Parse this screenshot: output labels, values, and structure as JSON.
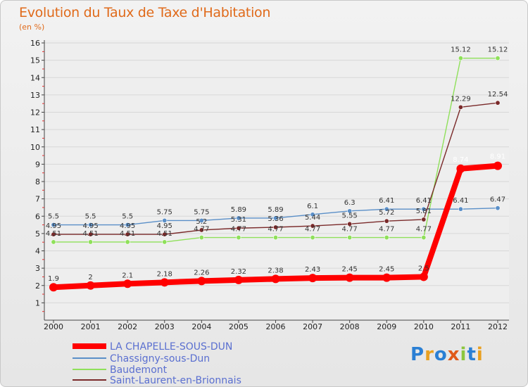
{
  "title": "Evolution du Taux de Taxe d'Habitation",
  "unit_label": "(en %)",
  "chart_data": {
    "type": "line",
    "x": [
      2000,
      2001,
      2002,
      2003,
      2004,
      2005,
      2006,
      2007,
      2008,
      2009,
      2010,
      2011,
      2012
    ],
    "x_labels": [
      "2000",
      "2001",
      "2002",
      "2003",
      "2004",
      "2005",
      "2006",
      "2007",
      "2008",
      "2009",
      "2010",
      "2011",
      "2012"
    ],
    "ylim": [
      0,
      16
    ],
    "y_ticks": [
      1,
      2,
      3,
      4,
      5,
      6,
      7,
      8,
      9,
      10,
      11,
      12,
      13,
      14,
      15,
      16
    ],
    "series": [
      {
        "name": "LA CHAPELLE-SOUS-DUN",
        "color": "#ff0000",
        "width": "bold",
        "values": [
          1.9,
          2,
          2.1,
          2.18,
          2.26,
          2.32,
          2.38,
          2.43,
          2.45,
          2.45,
          2.5,
          8.74,
          8.91
        ],
        "labels": [
          "1.9",
          "2",
          "2.1",
          "2.18",
          "2.26",
          "2.32",
          "2.38",
          "2.43",
          "2.45",
          "2.45",
          "2.5",
          "8.74",
          "8.91"
        ]
      },
      {
        "name": "Chassigny-sous-Dun",
        "color": "#5a8fc8",
        "width": "thin",
        "values": [
          5.5,
          5.5,
          5.5,
          5.75,
          5.75,
          5.89,
          5.89,
          6.1,
          6.3,
          6.41,
          6.41,
          6.41,
          6.47
        ],
        "labels": [
          "5.5",
          "5.5",
          "5.5",
          "5.75",
          "5.75",
          "5.89",
          "5.89",
          "6.1",
          "6.3",
          "6.41",
          "6.41",
          "6.41",
          "6.47"
        ]
      },
      {
        "name": "Baudemont",
        "color": "#8fe05a",
        "width": "thin",
        "values": [
          4.51,
          4.51,
          4.51,
          4.51,
          4.77,
          4.77,
          4.77,
          4.77,
          4.77,
          4.77,
          4.77,
          15.12,
          15.12
        ],
        "labels": [
          "4.51",
          "4.51",
          "4.51",
          "4.51",
          "4.77",
          "4.77",
          "4.77",
          "4.77",
          "4.77",
          "4.77",
          "4.77",
          "15.12",
          "15.12"
        ]
      },
      {
        "name": "Saint-Laurent-en-Brionnais",
        "color": "#7a2a2a",
        "width": "thin",
        "values": [
          4.95,
          4.95,
          4.95,
          4.95,
          5.2,
          5.31,
          5.36,
          5.44,
          5.55,
          5.72,
          5.81,
          12.29,
          12.54
        ],
        "labels": [
          "4.95",
          "4.95",
          "4.95",
          "4.95",
          "5.2",
          "5.31",
          "5.36",
          "5.44",
          "5.55",
          "5.72",
          "5.81",
          "12.29",
          "12.54"
        ]
      }
    ]
  },
  "legend": [
    {
      "label": "LA CHAPELLE-SOUS-DUN",
      "color": "#ff0000",
      "text_color": "#5a6fd0"
    },
    {
      "label": "Chassigny-sous-Dun",
      "color": "#5a8fc8",
      "text_color": "#5a6fd0"
    },
    {
      "label": "Baudemont",
      "color": "#8fe05a",
      "text_color": "#5a6fd0"
    },
    {
      "label": "Saint-Laurent-en-Brionnais",
      "color": "#7a2a2a",
      "text_color": "#5a6fd0"
    }
  ],
  "logo": {
    "text": "Proxiti",
    "letters": [
      {
        "ch": "P",
        "color": "#2a7fd4"
      },
      {
        "ch": "r",
        "color": "#e8a020"
      },
      {
        "ch": "o",
        "color": "#2a7fd4"
      },
      {
        "ch": "x",
        "color": "#e05a1a"
      },
      {
        "ch": "i",
        "color": "#8cc63e"
      },
      {
        "ch": "t",
        "color": "#2a7fd4"
      },
      {
        "ch": "i",
        "color": "#e8a020"
      }
    ]
  }
}
